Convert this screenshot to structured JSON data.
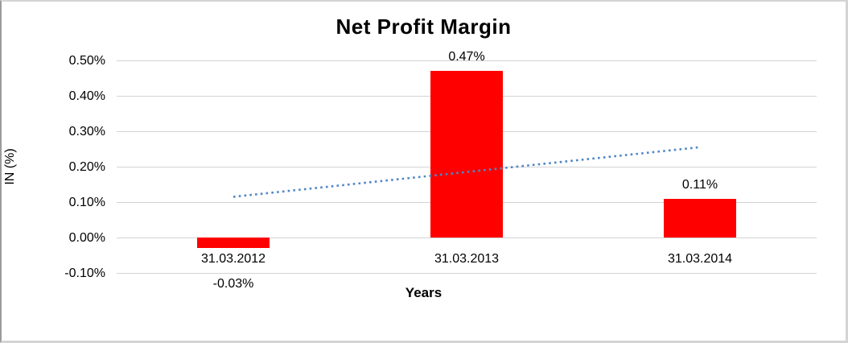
{
  "window": {
    "background_color": "#ffffff",
    "frame_border_color": "#d4d4d4",
    "frame_left_border_color": "#9b9b9b"
  },
  "chart_data": {
    "type": "bar",
    "title": "Net Profit Margin",
    "xlabel": "Years",
    "ylabel": "IN (%)",
    "categories": [
      "31.03.2012",
      "31.03.2013",
      "31.03.2014"
    ],
    "values": [
      -0.03,
      0.47,
      0.11
    ],
    "value_labels": [
      "-0.03%",
      "0.47%",
      "0.11%"
    ],
    "y_ticks": [
      "0.50%",
      "0.40%",
      "0.30%",
      "0.20%",
      "0.10%",
      "0.00%",
      "-0.10%"
    ],
    "y_tick_values": [
      0.5,
      0.4,
      0.3,
      0.2,
      0.1,
      0.0,
      -0.1
    ],
    "ylim": [
      -0.1,
      0.5
    ],
    "grid": true,
    "legend": "none",
    "bar_color": "#ff0000",
    "gridline_color": "#d3d3d3",
    "text_color": "#000000",
    "trendline": {
      "style": "dotted",
      "color": "#4f86c6",
      "from_category_index": 0,
      "to_category_index": 2,
      "y_start": 0.115,
      "y_end": 0.255
    }
  }
}
